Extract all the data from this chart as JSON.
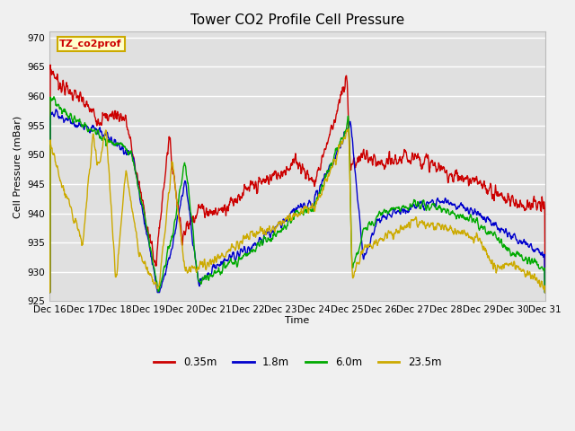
{
  "title": "Tower CO2 Profile Cell Pressure",
  "xlabel": "Time",
  "ylabel": "Cell Pressure (mBar)",
  "ylim": [
    925,
    971
  ],
  "yticks": [
    925,
    930,
    935,
    940,
    945,
    950,
    955,
    960,
    965,
    970
  ],
  "xtick_labels": [
    "Dec 16",
    "Dec 17",
    "Dec 18",
    "Dec 19",
    "Dec 20",
    "Dec 21",
    "Dec 22",
    "Dec 23",
    "Dec 24",
    "Dec 25",
    "Dec 26",
    "Dec 27",
    "Dec 28",
    "Dec 29",
    "Dec 30",
    "Dec 31"
  ],
  "colors": {
    "0.35m": "#cc0000",
    "1.8m": "#0000cc",
    "6.0m": "#00aa00",
    "23.5m": "#ccaa00"
  },
  "legend_label": "TZ_co2prof",
  "fig_bg_color": "#f0f0f0",
  "plot_bg_color": "#e0e0e0",
  "grid_color": "#ffffff",
  "line_width": 1.0,
  "title_fontsize": 11,
  "axis_fontsize": 8,
  "tick_fontsize": 7.5
}
